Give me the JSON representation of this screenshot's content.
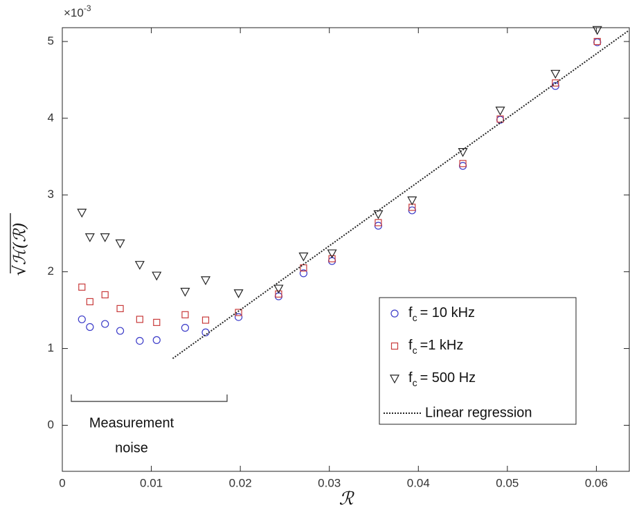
{
  "chart_data": {
    "type": "scatter",
    "xlabel": "ℛ",
    "ylabel": "√ℋ(ℛ)",
    "y_multiplier": {
      "base": "×10",
      "exponent": "-3"
    },
    "annotation": [
      "Measurement",
      "noise"
    ],
    "xlim": [
      0,
      0.0637
    ],
    "xticks": [
      0,
      0.01,
      0.02,
      0.03,
      0.04,
      0.05,
      0.06
    ],
    "ylim": [
      -0.6,
      5.18
    ],
    "yticks": [
      0,
      1,
      2,
      3,
      4,
      5
    ],
    "legend": "lower-right",
    "series": [
      {
        "name": {
          "base": "f",
          "sub": "c",
          "text": "=  10 kHz"
        },
        "marker": "circle",
        "color": "#3a3ac8",
        "x": [
          0.0022,
          0.0031,
          0.0048,
          0.0065,
          0.0087,
          0.0106,
          0.0138,
          0.0161,
          0.0198,
          0.0243,
          0.0271,
          0.0303,
          0.0355,
          0.0393,
          0.045,
          0.0492,
          0.0554,
          0.0601
        ],
        "values": [
          1.38,
          1.28,
          1.32,
          1.23,
          1.1,
          1.11,
          1.27,
          1.21,
          1.41,
          1.68,
          1.98,
          2.14,
          2.6,
          2.8,
          3.38,
          3.98,
          4.42,
          4.99
        ]
      },
      {
        "name": {
          "base": "f",
          "sub": "c",
          "text": "=1 kHz"
        },
        "marker": "square",
        "color": "#c83a3a",
        "x": [
          0.0022,
          0.0031,
          0.0048,
          0.0065,
          0.0087,
          0.0106,
          0.0138,
          0.0161,
          0.0198,
          0.0243,
          0.0271,
          0.0303,
          0.0355,
          0.0393,
          0.045,
          0.0492,
          0.0554,
          0.0601
        ],
        "values": [
          1.8,
          1.61,
          1.7,
          1.52,
          1.38,
          1.34,
          1.44,
          1.37,
          1.47,
          1.71,
          2.05,
          2.17,
          2.64,
          2.84,
          3.41,
          3.99,
          4.46,
          5.0
        ]
      },
      {
        "name": {
          "base": "f",
          "sub": "c",
          "text": "=  500 Hz"
        },
        "marker": "triangle",
        "color": "#222222",
        "x": [
          0.0022,
          0.0031,
          0.0048,
          0.0065,
          0.0087,
          0.0106,
          0.0138,
          0.0161,
          0.0198,
          0.0243,
          0.0271,
          0.0303,
          0.0355,
          0.0393,
          0.045,
          0.0492,
          0.0554,
          0.0601
        ],
        "values": [
          2.77,
          2.45,
          2.45,
          2.37,
          2.09,
          1.95,
          1.74,
          1.89,
          1.72,
          1.78,
          2.2,
          2.24,
          2.75,
          2.93,
          3.56,
          4.1,
          4.58,
          5.15
        ]
      },
      {
        "name": "Linear regression",
        "marker": "dotted-line",
        "color": "#222222",
        "x": [
          0.0124,
          0.0636
        ],
        "values": [
          0.87,
          5.14
        ]
      }
    ]
  }
}
